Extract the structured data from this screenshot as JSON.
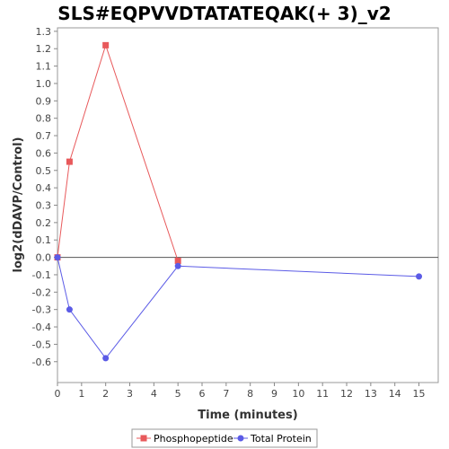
{
  "chart_data": {
    "type": "line",
    "title": "SLS#EQPVVDTATATEQAK(+ 3)_v2",
    "xlabel": "Time (minutes)",
    "ylabel": "log2(dDAVP/Control)",
    "xlim": [
      0,
      15.8
    ],
    "ylim": [
      -0.72,
      1.32
    ],
    "x_ticks": [
      0,
      1,
      2,
      3,
      4,
      5,
      6,
      7,
      8,
      9,
      10,
      11,
      12,
      13,
      14,
      15
    ],
    "y_ticks": [
      -0.6,
      -0.5,
      -0.4,
      -0.3,
      -0.2,
      -0.1,
      0.0,
      0.1,
      0.2,
      0.3,
      0.4,
      0.5,
      0.6,
      0.7,
      0.8,
      0.9,
      1.0,
      1.1,
      1.2,
      1.3
    ],
    "grid": false,
    "zero_line": true,
    "legend_position": "bottom",
    "series": [
      {
        "name": "Phosphopeptide",
        "color": "#e8595b",
        "marker": "square",
        "x": [
          0,
          0.5,
          2,
          5
        ],
        "y": [
          0.0,
          0.55,
          1.22,
          -0.02
        ]
      },
      {
        "name": "Total Protein",
        "color": "#5b5be6",
        "marker": "circle",
        "x": [
          0,
          0.5,
          2,
          5,
          15
        ],
        "y": [
          0.0,
          -0.3,
          -0.58,
          -0.05,
          -0.11
        ]
      }
    ]
  }
}
